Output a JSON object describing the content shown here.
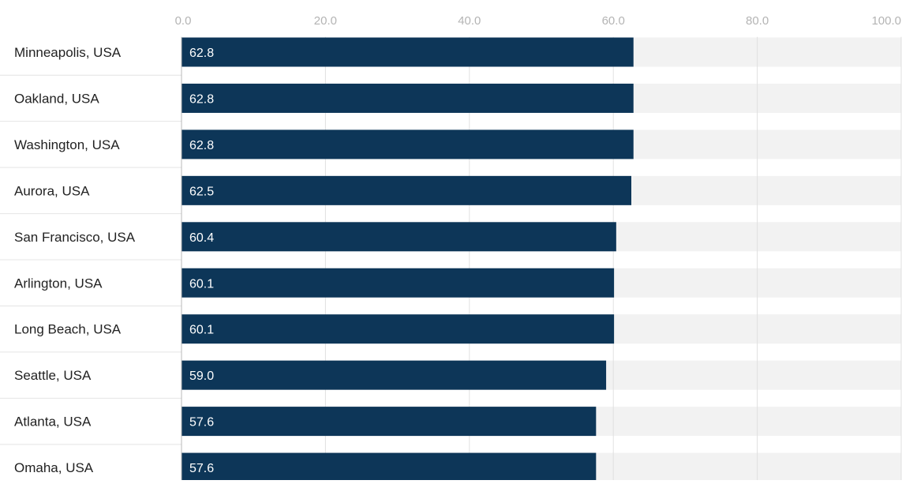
{
  "chart_data": {
    "type": "bar",
    "orientation": "horizontal",
    "title": "",
    "xlabel": "",
    "ylabel": "",
    "categories": [
      "Minneapolis, USA",
      "Oakland, USA",
      "Washington, USA",
      "Aurora, USA",
      "San Francisco, USA",
      "Arlington, USA",
      "Long Beach, USA",
      "Seattle, USA",
      "Atlanta, USA",
      "Omaha, USA"
    ],
    "values": [
      62.8,
      62.8,
      62.8,
      62.5,
      60.4,
      60.1,
      60.1,
      59.0,
      57.6,
      57.6
    ],
    "value_labels": [
      "62.8",
      "62.8",
      "62.8",
      "62.5",
      "60.4",
      "60.1",
      "60.1",
      "59.0",
      "57.6",
      "57.6"
    ],
    "xlim": [
      0,
      100
    ],
    "xticks": [
      0,
      20,
      40,
      60,
      80,
      100
    ],
    "xtick_labels": [
      "0.0",
      "20.0",
      "40.0",
      "60.0",
      "80.0",
      "100.0"
    ],
    "grid": true,
    "legend": "none",
    "colors": {
      "bar": "#0d3658",
      "track": "#f2f2f2",
      "gridline": "#e0e0e0",
      "tick_text": "#b4b4b4",
      "label_text": "#222222",
      "value_text": "#ffffff"
    }
  }
}
